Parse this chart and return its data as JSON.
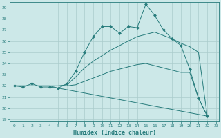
{
  "xlabel": "Humidex (Indice chaleur)",
  "bg_color": "#cce8e8",
  "grid_color": "#aacccc",
  "line_color": "#267b7b",
  "xlim": [
    -0.5,
    23.3
  ],
  "ylim": [
    18.8,
    29.5
  ],
  "yticks": [
    19,
    20,
    21,
    22,
    23,
    24,
    25,
    26,
    27,
    28,
    29
  ],
  "xticks": [
    0,
    1,
    2,
    3,
    4,
    5,
    6,
    7,
    8,
    9,
    10,
    11,
    12,
    13,
    14,
    15,
    16,
    17,
    18,
    19,
    20,
    21,
    22,
    23
  ],
  "lines": [
    {
      "x": [
        0,
        1,
        2,
        3,
        4,
        5,
        6,
        7,
        8,
        9,
        10,
        11,
        12,
        13,
        14,
        15,
        16,
        17,
        18,
        19,
        20,
        21,
        22
      ],
      "y": [
        22,
        21.9,
        22.2,
        21.9,
        21.9,
        21.8,
        22.2,
        23.3,
        25.0,
        26.4,
        27.3,
        27.3,
        26.7,
        27.3,
        27.2,
        29.3,
        28.3,
        27.0,
        26.2,
        25.6,
        23.5,
        20.9,
        19.3
      ],
      "marker": "D",
      "markersize": 2.0
    },
    {
      "x": [
        0,
        4,
        5,
        6,
        7,
        8,
        9,
        10,
        11,
        12,
        13,
        14,
        15,
        16,
        17,
        18,
        19,
        20,
        21,
        22
      ],
      "y": [
        22,
        22,
        22,
        22.1,
        22.8,
        23.6,
        24.2,
        24.7,
        25.2,
        25.6,
        26.0,
        26.4,
        26.6,
        26.8,
        26.5,
        26.2,
        25.8,
        25.5,
        25.0,
        19.3
      ],
      "marker": null,
      "markersize": 0
    },
    {
      "x": [
        0,
        4,
        5,
        6,
        7,
        8,
        9,
        10,
        11,
        12,
        13,
        14,
        15,
        16,
        17,
        18,
        19,
        20,
        21,
        22
      ],
      "y": [
        22,
        22,
        22,
        22,
        22.1,
        22.4,
        22.7,
        23.0,
        23.3,
        23.5,
        23.7,
        23.9,
        24.0,
        23.8,
        23.6,
        23.4,
        23.2,
        23.2,
        20.9,
        19.3
      ],
      "marker": null,
      "markersize": 0
    },
    {
      "x": [
        0,
        4,
        5,
        22
      ],
      "y": [
        22,
        22,
        21.8,
        19.3
      ],
      "marker": null,
      "markersize": 0
    }
  ]
}
